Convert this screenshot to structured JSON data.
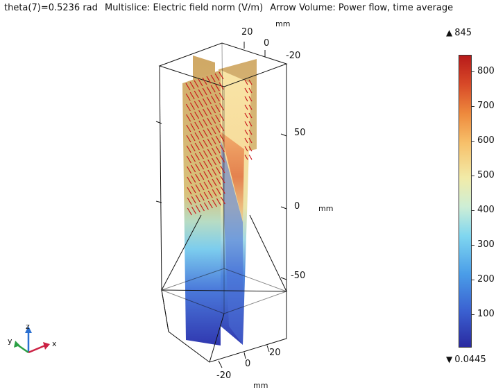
{
  "header": {
    "theta": "theta(7)=0.5236 rad",
    "multislice": "Multislice: Electric field norm (V/m)",
    "arrow": "Arrow Volume: Power flow, time average"
  },
  "axes": {
    "top_unit": "mm",
    "top_ticks": [
      "20",
      "0",
      "-20"
    ],
    "side_ticks": [
      "50",
      "0",
      "-50"
    ],
    "side_unit": "mm",
    "bottom_ticks": [
      "20",
      "0",
      "-20"
    ],
    "bottom_unit": "mm"
  },
  "triad": {
    "x": "x",
    "y": "y",
    "z": "z"
  },
  "colorbar": {
    "max_label": "845",
    "min_label": "0.0445",
    "ticks": [
      "800",
      "700",
      "600",
      "500",
      "400",
      "300",
      "200",
      "100"
    ],
    "colors": {
      "low": "#2a2aa0",
      "mid": "#f2eba8",
      "high": "#b71a1a"
    }
  },
  "arrows_color": "#c8161a"
}
